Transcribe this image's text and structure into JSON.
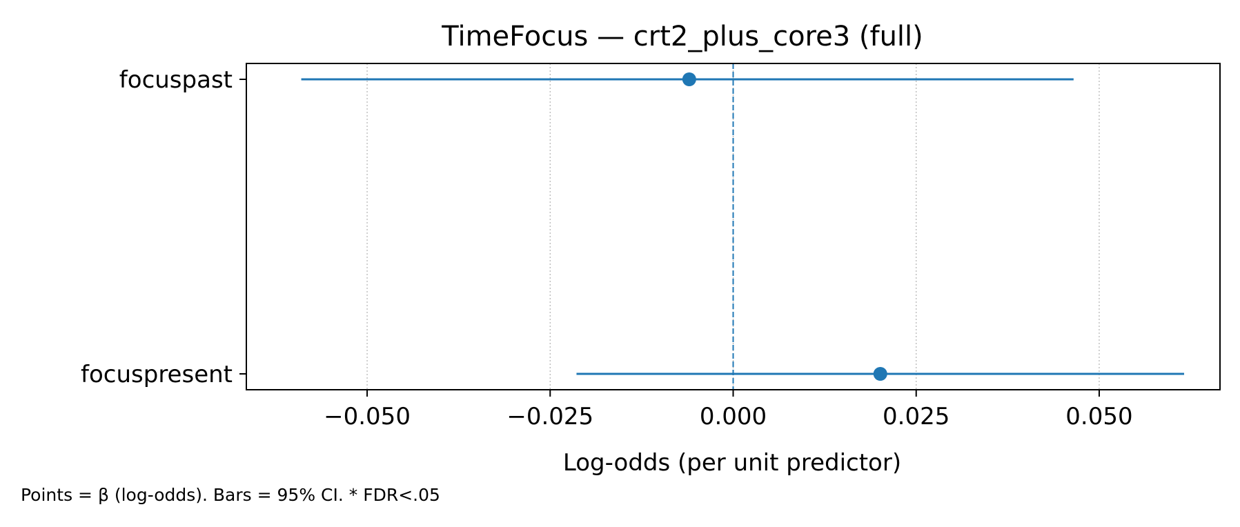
{
  "chart_data": {
    "type": "scatter",
    "title": "TimeFocus — crt2_plus_core3 (full)",
    "xlabel": "Log-odds (per unit predictor)",
    "ylabel": "",
    "xlim": [
      -0.0665,
      0.0665
    ],
    "x_ticks": [
      -0.05,
      -0.025,
      0.0,
      0.025,
      0.05
    ],
    "x_tick_labels": [
      "−0.050",
      "−0.025",
      "0.000",
      "0.025",
      "0.050"
    ],
    "categories": [
      "focuspast",
      "focuspresent"
    ],
    "points": [
      {
        "label": "focuspast",
        "beta": -0.006,
        "ci_low": -0.059,
        "ci_high": 0.0465
      },
      {
        "label": "focuspresent",
        "beta": 0.0201,
        "ci_low": -0.0214,
        "ci_high": 0.0616
      }
    ],
    "reference_line": 0,
    "grid": "x-dotted",
    "color": "#1f77b4",
    "footnote": "Points = β (log-odds). Bars = 95% CI. * FDR<.05"
  }
}
